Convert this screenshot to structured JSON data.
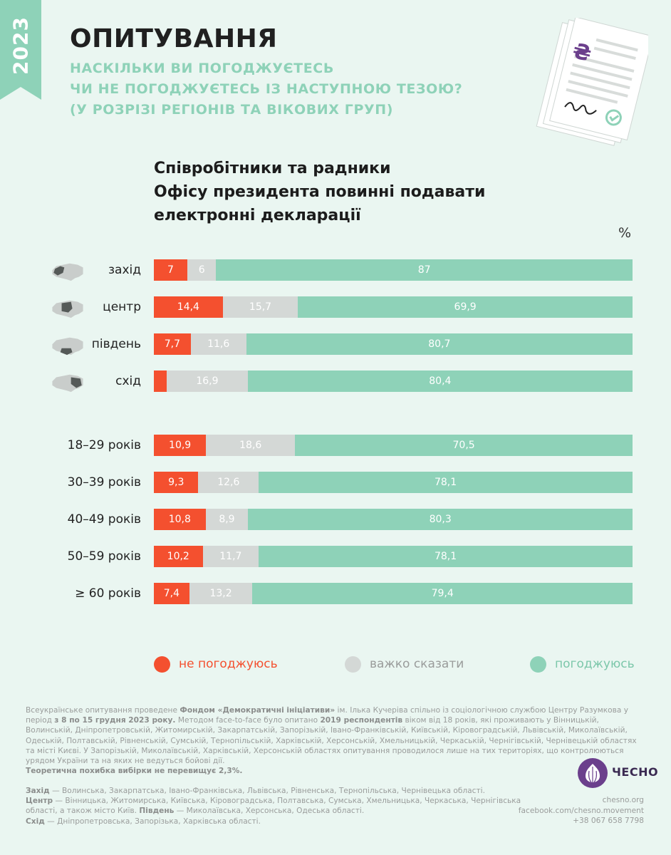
{
  "ribbon": {
    "year": "2023",
    "color": "#8ed2b8"
  },
  "header": {
    "title": "ОПИТУВАННЯ",
    "subtitle_lines": [
      "НАСКІЛЬКИ ВИ ПОГОДЖУЄТЕСЬ",
      "ЧИ НЕ ПОГОДЖУЄТЕСЬ ІЗ НАСТУПНОЮ ТЕЗОЮ?",
      "(У РОЗРІЗІ РЕГІОНІВ ТА ВІКОВИХ ГРУП)"
    ]
  },
  "illustration": {
    "icon": "signed-document-icon",
    "mark": "₴"
  },
  "chart_data": {
    "type": "bar",
    "stacked": true,
    "orientation": "horizontal",
    "title_lines": [
      "Співробітники та радники",
      "Офісу президента повинні подавати",
      "електронні декларації"
    ],
    "unit": "%",
    "categories": [
      "захід",
      "центр",
      "південь",
      "схід",
      "18–29 років",
      "30–39 років",
      "40–49 років",
      "50–59 років",
      "≥ 60 років"
    ],
    "category_groups": [
      {
        "type": "region",
        "count": 4
      },
      {
        "type": "age",
        "count": 5
      }
    ],
    "series": [
      {
        "name": "не погоджуюсь",
        "color": "#f4502f",
        "values": [
          7,
          14.4,
          7.7,
          2.7,
          10.9,
          9.3,
          10.8,
          10.2,
          7.4
        ],
        "labels": [
          "7",
          "14,4",
          "7,7",
          "2,7",
          "10,9",
          "9,3",
          "10,8",
          "10,2",
          "7,4"
        ]
      },
      {
        "name": "важко сказати",
        "color": "#d4d8d6",
        "values": [
          6,
          15.7,
          11.6,
          16.9,
          18.6,
          12.6,
          8.9,
          11.7,
          13.2
        ],
        "labels": [
          "6",
          "15,7",
          "11,6",
          "16,9",
          "18,6",
          "12,6",
          "8,9",
          "11,7",
          "13,2"
        ]
      },
      {
        "name": "погоджуюсь",
        "color": "#8ed2b8",
        "values": [
          87,
          69.9,
          80.7,
          80.4,
          70.5,
          78.1,
          80.3,
          78.1,
          79.4
        ],
        "labels": [
          "87",
          "69,9",
          "80,7",
          "80,4",
          "70,5",
          "78,1",
          "80,3",
          "78,1",
          "79,4"
        ]
      }
    ],
    "xlim": [
      0,
      100
    ],
    "legend_position": "bottom"
  },
  "region_maps": [
    {
      "icon": "ukraine-map-west-icon",
      "highlight": "west"
    },
    {
      "icon": "ukraine-map-center-icon",
      "highlight": "center"
    },
    {
      "icon": "ukraine-map-south-icon",
      "highlight": "south"
    },
    {
      "icon": "ukraine-map-east-icon",
      "highlight": "east"
    }
  ],
  "notes": {
    "p1_a": "Всеукраїнське опитування проведене ",
    "p1_b": "Фондом «Демократичні ініціативи»",
    "p1_c": " ім. Ілька Кучеріва спільно із соціологічною службою Центру Разумкова у період ",
    "p1_d": "з 8 по 15 грудня 2023 року.",
    "p1_e": " Методом face-to-face було опитано ",
    "p1_f": "2019 респондентів",
    "p1_g": " віком від 18 років, які проживають у Вінницькій, Волинській, Дніпропетровській, Житомирській, Закарпатській, Запорізькій, Івано-Франківській, Київській, Кіровоградській, Львівській, Миколаївській, Одеській, Полтавській, Рівненській, Сумській, Тернопільській, Харківській, Херсонській, Хмельницькій, Черкаській, Чернігівській, Чернівецькій областях та місті Києві. У Запорізькій, Миколаївській, Харківській, Херсонській областях опитування проводилося лише на тих територіях, що контролюються урядом України та на яких не ведуться бойові дії.",
    "p2": "Теоретична похибка вибірки не перевищує 2,3%."
  },
  "regions_text": {
    "west_label": "Захід",
    "west": " — Волинська, Закарпатська, Івано-Франківська, Львівська, Рівненська, Тернопільська, Чернівецька області.",
    "center_label": "Центр",
    "center": " — Вінницька, Житомирська, Київська, Кіровоградська, Полтавська, Сумська, Хмельницька, Черкаська, Чернігівська області, а також місто Київ. ",
    "south_label": "Південь",
    "south": " — Миколаївська, Херсонська, Одеська області.",
    "east_label": "Схід",
    "east": " — Дніпропетровська, Запорізька, Харківська області."
  },
  "logo": {
    "text": "ЧЕСНО",
    "color": "#6b3f8c"
  },
  "contacts": {
    "site": "chesno.org",
    "facebook": "facebook.com/chesno.movement",
    "phone": "+38 067 658 7798"
  }
}
